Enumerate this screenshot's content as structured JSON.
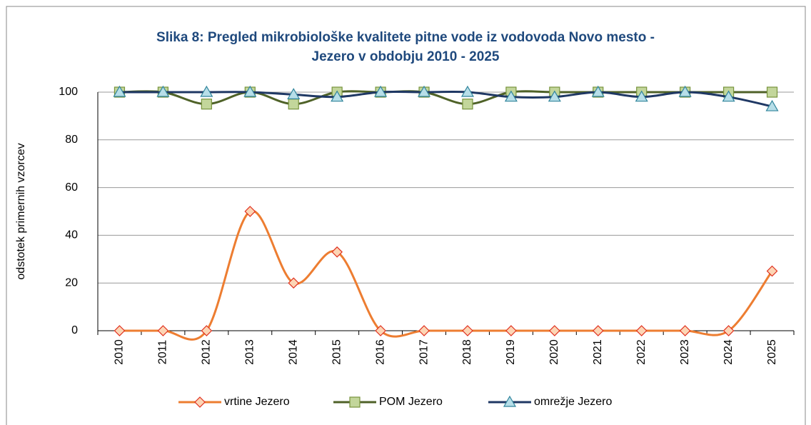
{
  "chart_data": {
    "type": "line",
    "title": [
      "Slika 8: Pregled mikrobiološke kvalitete pitne vode iz vodovoda Novo mesto -",
      "Jezero v obdobju 2010 - 2025"
    ],
    "ylabel": "odstotek primernih vzorcev",
    "categories": [
      "2010",
      "2011",
      "2012",
      "2013",
      "2014",
      "2015",
      "2016",
      "2017",
      "2018",
      "2019",
      "2020",
      "2021",
      "2022",
      "2023",
      "2024",
      "2025"
    ],
    "series": [
      {
        "name": "vrtine Jezero",
        "color": "#ed7d31",
        "marker": "diamond",
        "values": [
          0,
          0,
          0,
          50,
          20,
          33,
          0,
          0,
          0,
          0,
          0,
          0,
          0,
          0,
          0,
          25
        ]
      },
      {
        "name": "POM Jezero",
        "color": "#4f6228",
        "marker": "square",
        "values": [
          100,
          100,
          95,
          100,
          95,
          100,
          100,
          100,
          95,
          100,
          100,
          100,
          100,
          100,
          100,
          100
        ]
      },
      {
        "name": "omrežje Jezero",
        "color": "#1f3864",
        "marker": "triangle",
        "values": [
          100,
          100,
          100,
          100,
          99,
          98,
          100,
          100,
          100,
          98,
          98,
          100,
          98,
          100,
          98,
          94
        ]
      }
    ],
    "ylim": [
      0,
      100
    ],
    "yticks": [
      0,
      20,
      40,
      60,
      80,
      100
    ],
    "grid": true,
    "smooth": true,
    "legend": "bottom"
  }
}
